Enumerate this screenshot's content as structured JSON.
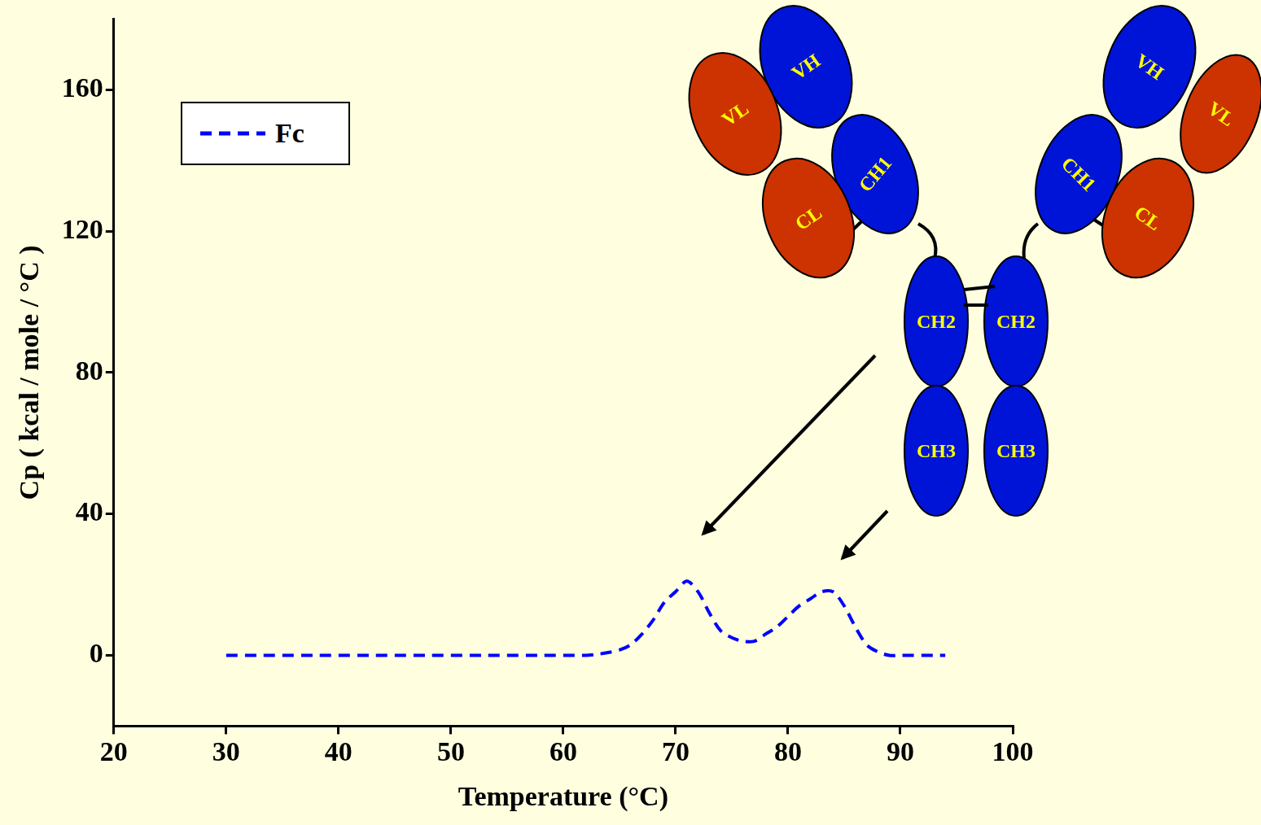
{
  "chart_data": {
    "type": "line",
    "x_label": "Temperature (°C)",
    "y_label": "Cp ( kcal / mole / °C )",
    "x": [
      30,
      31,
      32,
      33,
      34,
      35,
      36,
      37,
      38,
      39,
      40,
      41,
      42,
      43,
      44,
      45,
      46,
      47,
      48,
      49,
      50,
      51,
      52,
      53,
      54,
      55,
      56,
      57,
      58,
      59,
      60,
      61,
      62,
      63,
      64,
      65,
      66,
      67,
      68,
      69,
      70,
      71,
      72,
      73,
      74,
      75,
      76,
      77,
      78,
      79,
      80,
      81,
      82,
      83,
      84,
      85,
      86,
      87,
      88,
      89,
      90,
      91,
      92,
      93,
      94
    ],
    "series": [
      {
        "name": "Fc",
        "color": "#0000ff",
        "line_style": "dashed",
        "values": [
          0,
          0,
          0,
          0,
          0,
          0,
          0,
          0,
          0,
          0,
          0,
          0,
          0,
          0,
          0,
          0,
          0,
          0,
          0,
          0,
          0,
          0,
          0,
          0,
          0,
          0,
          0,
          0,
          0,
          0,
          0,
          0,
          0,
          0.3,
          0.8,
          1.5,
          3,
          6,
          10,
          15,
          18,
          21,
          18,
          12,
          7,
          5,
          4,
          4,
          6,
          8,
          11,
          14,
          16,
          18,
          18,
          14,
          8,
          3,
          1,
          0,
          0,
          0,
          0,
          0,
          0
        ]
      }
    ],
    "xlim": [
      20,
      100
    ],
    "xticks": [
      20,
      30,
      40,
      50,
      60,
      70,
      80,
      90,
      100
    ],
    "ylim": [
      -20,
      180
    ],
    "yticks": [
      0,
      40,
      80,
      120,
      160
    ],
    "grid": false,
    "legend": "upper left",
    "annotations": [
      "VH",
      "VL",
      "CH1",
      "CL",
      "VH",
      "VL",
      "CH1",
      "CL",
      "CH2",
      "CH2",
      "CH3",
      "CH3"
    ]
  }
}
